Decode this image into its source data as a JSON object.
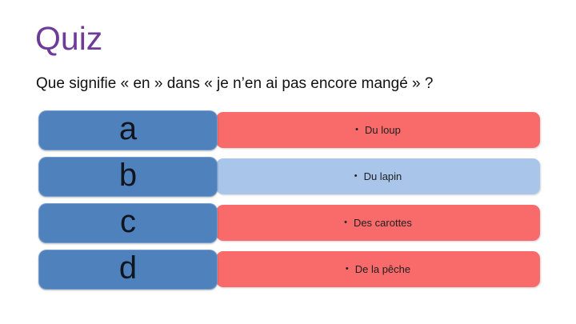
{
  "slide": {
    "title": "Quiz",
    "question": "Que signifie « en » dans « je n’en ai pas encore mangé » ?",
    "answers": [
      {
        "letter": "a",
        "bullet": "•",
        "text": "Du loup",
        "variant": "red"
      },
      {
        "letter": "b",
        "bullet": "•",
        "text": "Du lapin",
        "variant": "lightblue"
      },
      {
        "letter": "c",
        "bullet": "•",
        "text": "Des carottes",
        "variant": "red"
      },
      {
        "letter": "d",
        "bullet": "•",
        "text": "De la pêche",
        "variant": "red"
      }
    ],
    "colors": {
      "title": "#6E3C98",
      "letter_box": "#4F81BD",
      "answer_red": "#F96B6B",
      "answer_lightblue": "#A9C6EA",
      "background": "#FFFFFF"
    }
  }
}
